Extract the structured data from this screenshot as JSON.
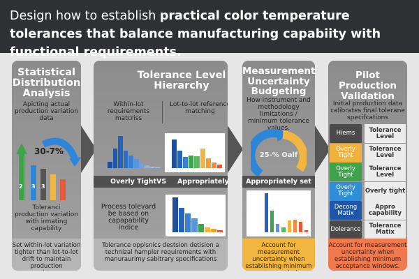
{
  "header": {
    "title_light": "Design how to establish ",
    "title_bold": "practical color temperature tolerances that balance manufacturing capabiity with functional requirements."
  },
  "panels": [
    {
      "title": "Statistical Distribution Analysis",
      "subtitle": "Apicting actual production variation data",
      "gauge_label": "30-7%",
      "bar_labels": [
        "2",
        "3",
        "3"
      ],
      "body": "Toleranci production variation with irmating capability",
      "bottom": "Set within-lot variation tighter than lot-to-lot drift to maintain production consistency"
    },
    {
      "title": "Tolerance Level Hierarchy",
      "col_left": "Within-lot requirements matcriss",
      "col_right": "Lot-to-lot reference matching",
      "compare": {
        "left": "Overly Tight",
        "vs": "VS",
        "right": "Appropriately"
      },
      "body": "Process tolevard be based on capapability indice",
      "bottom": "Tolerance oppisnics destsion detision a technizal hampler requirements with manuraurimy sabitrary specifications"
    },
    {
      "title": "Measurement Uncertainty Budgeting",
      "subtitle": "How instrument and methodology limitations / minimum tolerance values.",
      "gauge_label": "25-% Oalf",
      "bar": "Appropriately set",
      "bottom": "Account for measurement uncertainty when establishing minimum acceptance windows."
    },
    {
      "title": "Pilot Production Validation",
      "subtitle": "Initial production data calibrates final tolerane specifcations",
      "rows": [
        {
          "k": "Hiems",
          "v": "Tolerance Level",
          "color": "#4a4a4a"
        },
        {
          "k": "Overly Tight",
          "v": "Tolerance Level",
          "color": "#f0b23a"
        },
        {
          "k": "Overly Tight",
          "v": "Tolerance Level",
          "color": "#3ea34a"
        },
        {
          "k": "Overly Tight",
          "v": "Overly tight",
          "color": "#2e8fd8"
        },
        {
          "k": "Decong Matix",
          "v": "Appro capability",
          "color": "#1f57a8"
        },
        {
          "k": "Dolerance",
          "v": "Tolerance Matix",
          "color": "#4a4a4a"
        }
      ],
      "bottom": "Account for measurement uncertainty when establishing minimum acceptance windows."
    }
  ],
  "colors": {
    "header": "#2e3033",
    "yellow": "#f0b640",
    "orange": "#f07a50",
    "blue": "#2e86d8",
    "green": "#3ea34a"
  }
}
